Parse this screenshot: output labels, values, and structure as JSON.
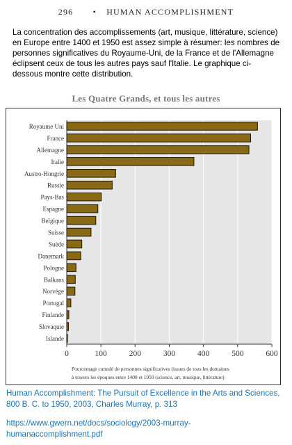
{
  "header": {
    "page_number": "296",
    "separator": "•",
    "book_title": "HUMAN ACCOMPLISHMENT"
  },
  "intro_text": "La concentration des accomplissements (art, musique, littérature, science) en Europe entre 1400 et 1950 est assez simple à résumer: les nombres de personnes significatives du Royaume-Uni, de la France et de l'Allemagne éclipsent ceux de tous les autres pays sauf l'Italie. Le graphique ci-dessous montre cette distribution.",
  "colors": {
    "bar_fill": "#8a6914",
    "bar_stroke": "#1a1408",
    "plot_bg": "#e6e6e6",
    "grid": "#ffffff",
    "link": "#1a73b8"
  },
  "chart_data": {
    "type": "bar",
    "orientation": "horizontal",
    "title": "Les Quatre Grands, et tous les autres",
    "xlabel_line1": "Pourcentage cumulé de personnes significatives (issues de tous les domaines",
    "xlabel_line2": "à travers les époques entre 1400 et 1950 (science, art, musique, littérature)",
    "xlim": [
      0,
      600
    ],
    "xticks": [
      0,
      100,
      200,
      300,
      400,
      500,
      600
    ],
    "grid": true,
    "categories": [
      "Royaume Uni",
      "France",
      "Allemagne",
      "Italie",
      "Austro-Hongrie",
      "Russie",
      "Pays-Bas",
      "Espagne",
      "Belgique",
      "Suisse",
      "Suède",
      "Danemark",
      "Pologne",
      "Balkans",
      "Norvège",
      "Portugal",
      "Finlande",
      "Slovaquie",
      "Islande"
    ],
    "values": [
      558,
      538,
      533,
      372,
      143,
      133,
      101,
      91,
      85,
      71,
      44,
      41,
      27,
      25,
      24,
      12,
      6,
      5,
      2
    ]
  },
  "caption": "Human Accomplishment: The Pursuit of Excellence in the Arts and Sciences, 800 B. C. to 1950, 2003, Charles Murray, p. 313",
  "source_url": "https://www.gwern.net/docs/sociology/2003-murray-humanaccomplishment.pdf"
}
